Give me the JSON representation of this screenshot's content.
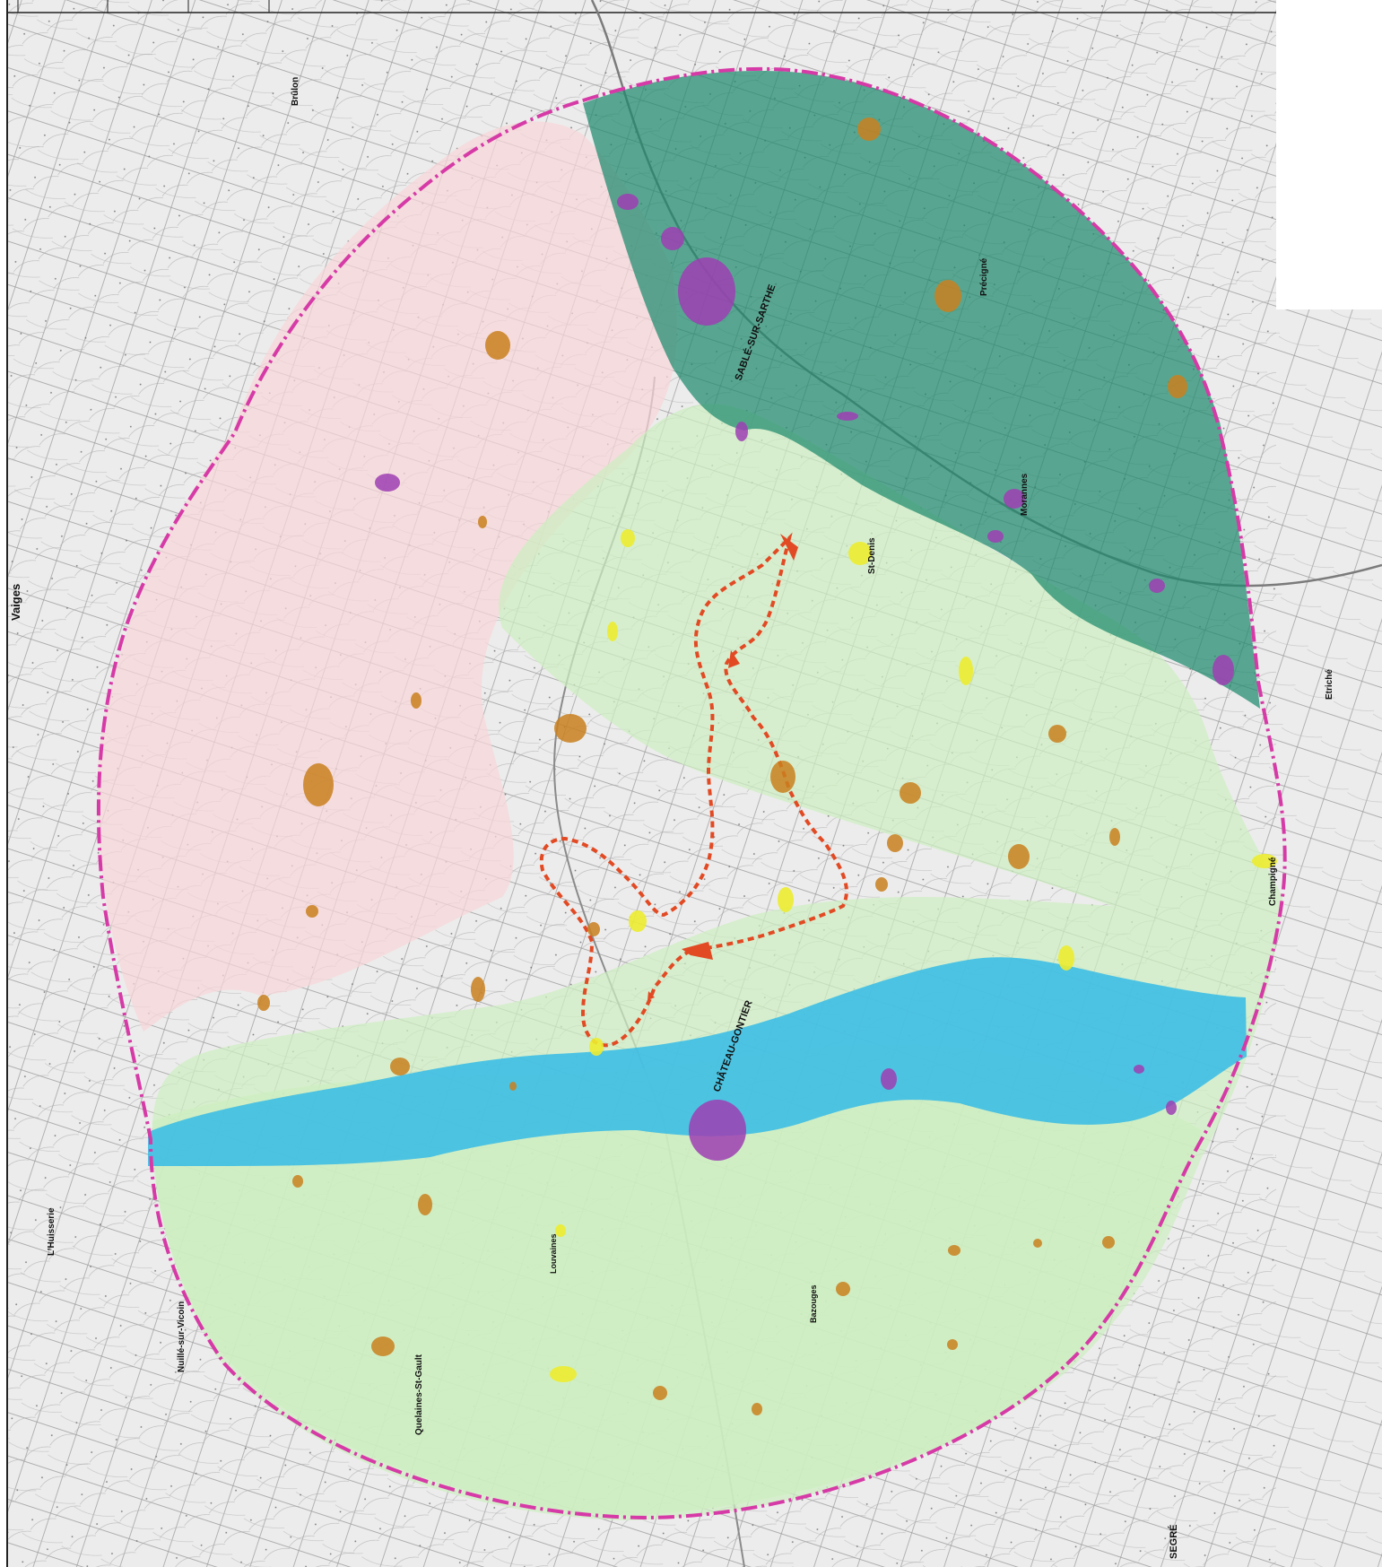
{
  "map": {
    "place_labels": {
      "sable": "SABLÉ-SUR-SARTHE",
      "chateau_gontier": "CHÂTEAU-GONTIER",
      "vaiges": "Vaiges",
      "segre": "SEGRÉ",
      "precigne": "Précigné",
      "morannes": "Morannes",
      "brulon": "Brûlon",
      "st_denis": "St-Denis",
      "etriche": "Etriché",
      "champigne": "Champigné",
      "lhuisserie": "L'Huisserie",
      "nuille": "Nuillé-sur-Vicoin",
      "quelaines": "Quelaines-St-Gault",
      "louvaines": "Louvaines",
      "bazouges": "Bazouges"
    },
    "colors": {
      "study_boundary": "#d63aa6",
      "zone_pink": "#f8d6d8",
      "zone_dark_green": "#1f8a6e",
      "zone_light_green": "#cdeec0",
      "zone_blue": "#35bbe6",
      "project_outline": "#e24a24",
      "patch_orange": "#c9801e",
      "patch_purple": "#9d3eb3",
      "patch_yellow": "#ecec30"
    }
  }
}
